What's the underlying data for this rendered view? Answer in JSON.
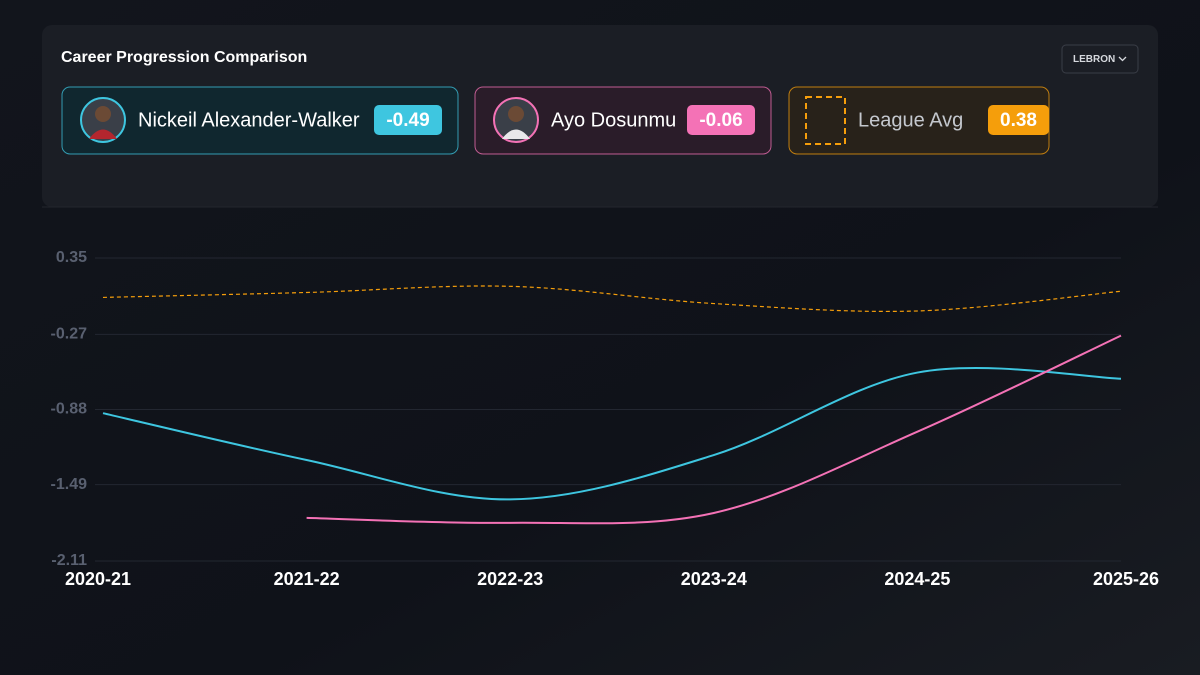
{
  "chart_data": {
    "type": "line",
    "title": "Career Progression Comparison",
    "metric_selector": "LEBRON",
    "categories": [
      "2020-21",
      "2021-22",
      "2022-23",
      "2023-24",
      "2024-25",
      "2025-26"
    ],
    "series": [
      {
        "name": "Nickeil Alexander-Walker",
        "color": "#3ec6e0",
        "line_style": "solid",
        "current": -0.49,
        "values": [
          -0.91,
          -1.29,
          -1.61,
          -1.25,
          -0.58,
          -0.63
        ]
      },
      {
        "name": "Ayo Dosunmu",
        "color": "#f472b6",
        "line_style": "solid",
        "current": -0.06,
        "values": [
          null,
          -1.76,
          -1.8,
          -1.72,
          -1.06,
          -0.28
        ]
      },
      {
        "name": "League Avg",
        "color": "#f59e0b",
        "line_style": "dashed",
        "current": 0.38,
        "values": [
          0.03,
          0.07,
          0.12,
          -0.02,
          -0.08,
          0.08
        ]
      }
    ],
    "ylim": [
      -2.11,
      0.35
    ],
    "yticks": [
      0.35,
      -0.27,
      -0.88,
      -1.49,
      -2.11
    ],
    "grid": true
  }
}
